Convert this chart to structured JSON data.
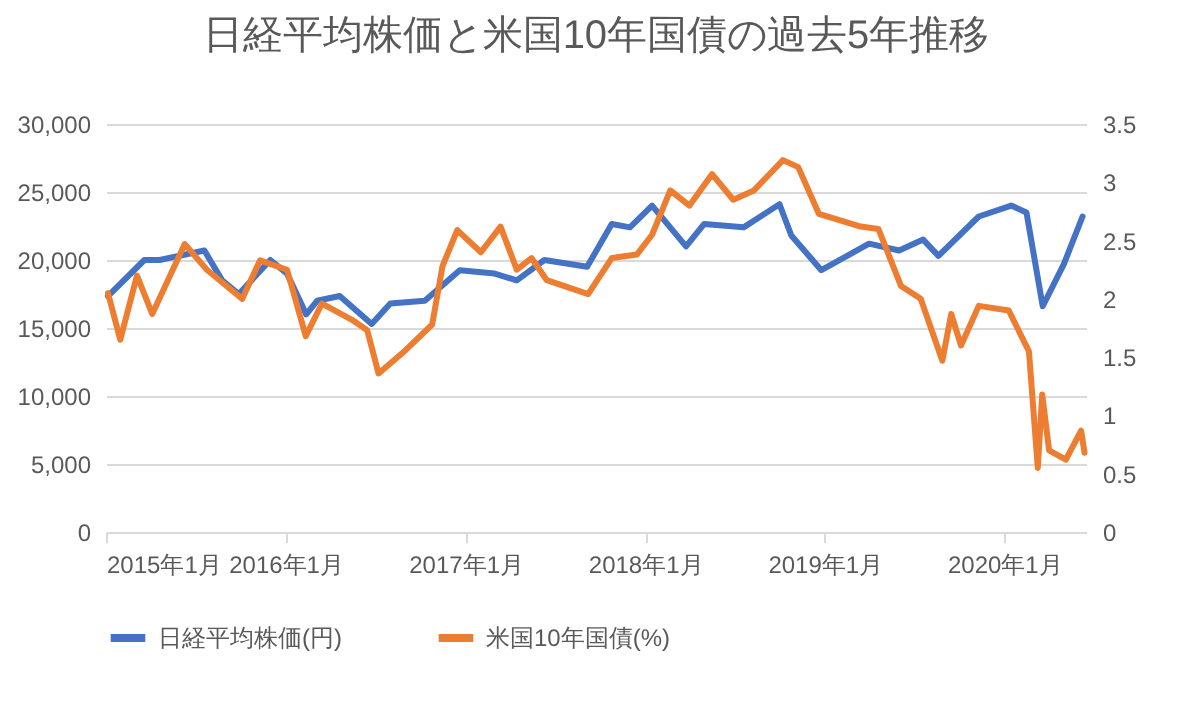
{
  "chart_data": {
    "type": "line",
    "title": "日経平均株価と米国10年国債の過去5年推移",
    "xlim": [
      "2015-01-01",
      "2020-06-15"
    ],
    "xticks": [
      {
        "value": "2015-01",
        "label": "2015年1月"
      },
      {
        "value": "2016-01",
        "label": "2016年1月"
      },
      {
        "value": "2017-01",
        "label": "2017年1月"
      },
      {
        "value": "2018-01",
        "label": "2018年1月"
      },
      {
        "value": "2019-01",
        "label": "2019年1月"
      },
      {
        "value": "2020-01",
        "label": "2020年1月"
      }
    ],
    "ylim": [
      0,
      30000
    ],
    "yticks": [
      0,
      {
        "value": 5000,
        "label": "5,000"
      },
      {
        "value": 10000,
        "label": "10,000"
      },
      {
        "value": 15000,
        "label": "15,000"
      },
      {
        "value": 20000,
        "label": "20,000"
      },
      {
        "value": 25000,
        "label": "25,000"
      },
      {
        "value": 30000,
        "label": "30,000"
      }
    ],
    "y2lim": [
      0,
      3.5
    ],
    "y2ticks": [
      0,
      0.5,
      1,
      1.5,
      2,
      2.5,
      3,
      3.5
    ],
    "grid": "y",
    "legend": "bottom",
    "line_style": "solid",
    "marker": "none",
    "series": [
      {
        "name": "日経平均株価(円)",
        "color": "#4472c4",
        "x": [
          "2015-01-05",
          "2015-03-20",
          "2015-04-20",
          "2015-07-20",
          "2015-08-25",
          "2015-09-28",
          "2015-12-01",
          "2016-01-04",
          "2016-02-12",
          "2016-03-05",
          "2016-04-20",
          "2016-06-24",
          "2016-08-01",
          "2016-10-10",
          "2016-12-20",
          "2017-03-01",
          "2017-04-15",
          "2017-06-10",
          "2017-09-05",
          "2017-10-25",
          "2017-12-01",
          "2018-01-15",
          "2018-03-25",
          "2018-05-01",
          "2018-07-20",
          "2018-10-01",
          "2018-10-25",
          "2018-12-25",
          "2019-04-01",
          "2019-06-01",
          "2019-07-20",
          "2019-08-20",
          "2019-11-10",
          "2020-01-15",
          "2020-02-15",
          "2020-03-19",
          "2020-05-01",
          "2020-06-08"
        ],
        "values": [
          17350,
          20000,
          20000,
          20700,
          18500,
          17500,
          20000,
          19000,
          16000,
          17000,
          17350,
          15300,
          16800,
          17000,
          19250,
          19000,
          18500,
          20000,
          19500,
          22650,
          22400,
          24000,
          21000,
          22650,
          22400,
          24100,
          21800,
          19250,
          21200,
          20700,
          21500,
          20300,
          23200,
          24000,
          23500,
          16600,
          19700,
          23200
        ]
      },
      {
        "name": "米国10年国債(%)",
        "color": "#ed7d31",
        "axis": "y2",
        "x": [
          "2015-01-05",
          "2015-01-30",
          "2015-03-05",
          "2015-04-05",
          "2015-06-10",
          "2015-07-25",
          "2015-10-05",
          "2015-11-10",
          "2016-01-04",
          "2016-02-11",
          "2016-03-15",
          "2016-05-15",
          "2016-06-15",
          "2016-07-08",
          "2016-09-01",
          "2016-10-25",
          "2016-11-15",
          "2016-12-15",
          "2017-02-01",
          "2017-03-13",
          "2017-04-15",
          "2017-05-15",
          "2017-06-15",
          "2017-09-07",
          "2017-10-25",
          "2017-12-15",
          "2018-01-15",
          "2018-02-21",
          "2018-04-01",
          "2018-05-17",
          "2018-06-29",
          "2018-08-10",
          "2018-10-08",
          "2018-11-08",
          "2018-12-20",
          "2019-03-15",
          "2019-04-20",
          "2019-06-05",
          "2019-07-15",
          "2019-08-28",
          "2019-09-15",
          "2019-10-05",
          "2019-11-10",
          "2020-01-10",
          "2020-02-20",
          "2020-03-09",
          "2020-03-18",
          "2020-04-01",
          "2020-05-05",
          "2020-06-05",
          "2020-06-12"
        ],
        "values": [
          2.05,
          1.65,
          2.2,
          1.87,
          2.47,
          2.25,
          2.0,
          2.33,
          2.25,
          1.68,
          1.96,
          1.82,
          1.73,
          1.36,
          1.56,
          1.78,
          2.28,
          2.59,
          2.4,
          2.62,
          2.25,
          2.35,
          2.16,
          2.04,
          2.35,
          2.38,
          2.55,
          2.93,
          2.8,
          3.07,
          2.85,
          2.93,
          3.19,
          3.13,
          2.73,
          2.62,
          2.6,
          2.11,
          2.0,
          1.47,
          1.87,
          1.6,
          1.94,
          1.9,
          1.55,
          0.55,
          1.18,
          0.7,
          0.62,
          0.87,
          0.68
        ]
      }
    ]
  }
}
